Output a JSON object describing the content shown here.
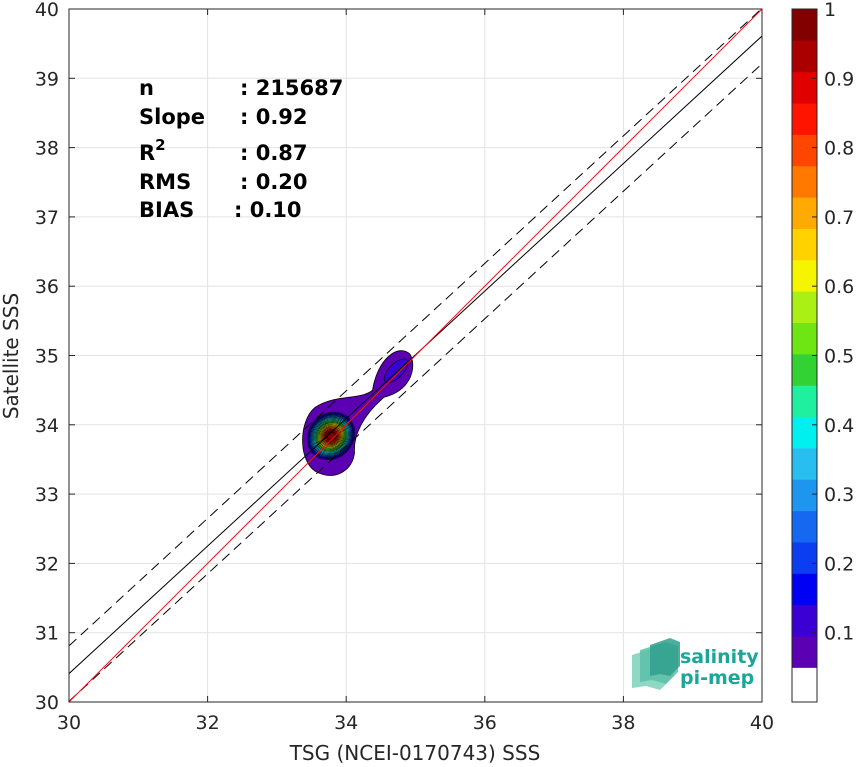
{
  "chart_data": {
    "type": "heatmap",
    "xlabel": "TSG (NCEI-0170743) SSS",
    "ylabel": "Satellite SSS",
    "xlim": [
      30,
      40
    ],
    "ylim": [
      30,
      40
    ],
    "xticks": [
      30,
      32,
      34,
      36,
      38,
      40
    ],
    "yticks": [
      30,
      31,
      32,
      33,
      34,
      35,
      36,
      37,
      38,
      39,
      40
    ],
    "grid": true,
    "stats": [
      {
        "key": "n",
        "value": ": 215687"
      },
      {
        "key": "Slope",
        "value": ": 0.92"
      },
      {
        "key": "R",
        "sup": "2",
        "value": ": 0.87"
      },
      {
        "key": "RMS",
        "value": ": 0.20"
      },
      {
        "key": "BIAS",
        "value": ": 0.10"
      }
    ],
    "lines": {
      "one_to_one": {
        "color": "#e8191c",
        "points": [
          [
            30,
            30
          ],
          [
            40,
            40
          ]
        ]
      },
      "fit": {
        "color": "#000000",
        "points": [
          [
            30,
            30.41
          ],
          [
            40,
            39.61
          ]
        ]
      },
      "fit_plus_2rms": {
        "color": "#000000",
        "style": "dashed",
        "points": [
          [
            30,
            30.81
          ],
          [
            40,
            40.01
          ]
        ]
      },
      "fit_minus_2rms": {
        "color": "#000000",
        "style": "dashed",
        "points": [
          [
            30,
            30.01
          ],
          [
            40,
            39.21
          ]
        ]
      }
    },
    "density_peaks": [
      {
        "x": 33.78,
        "y": 33.84,
        "value": 1.0
      },
      {
        "x": 34.72,
        "y": 34.78,
        "value": 0.15
      }
    ],
    "colorbar": {
      "min": 0,
      "max": 1,
      "ticks": [
        0.1,
        0.2,
        0.3,
        0.4,
        0.5,
        0.6,
        0.7,
        0.8,
        0.9,
        1
      ],
      "tick_labels": [
        "0.1",
        "0.2",
        "0.3",
        "0.4",
        "0.5",
        "0.6",
        "0.7",
        "0.8",
        "0.9",
        "1"
      ],
      "levels": [
        "#ffffff",
        "#5b00b2",
        "#3a00d4",
        "#0000f5",
        "#0a3ef0",
        "#1469f0",
        "#1e96f0",
        "#28bef0",
        "#00f0f0",
        "#1ef0a0",
        "#32d232",
        "#6ee614",
        "#aaf014",
        "#f5f500",
        "#ffd200",
        "#ffaa00",
        "#ff7800",
        "#ff4600",
        "#ff1400",
        "#e10000",
        "#aa0000",
        "#820000"
      ]
    }
  },
  "logo": {
    "line1": "salinity",
    "line2": "pi-mep"
  }
}
